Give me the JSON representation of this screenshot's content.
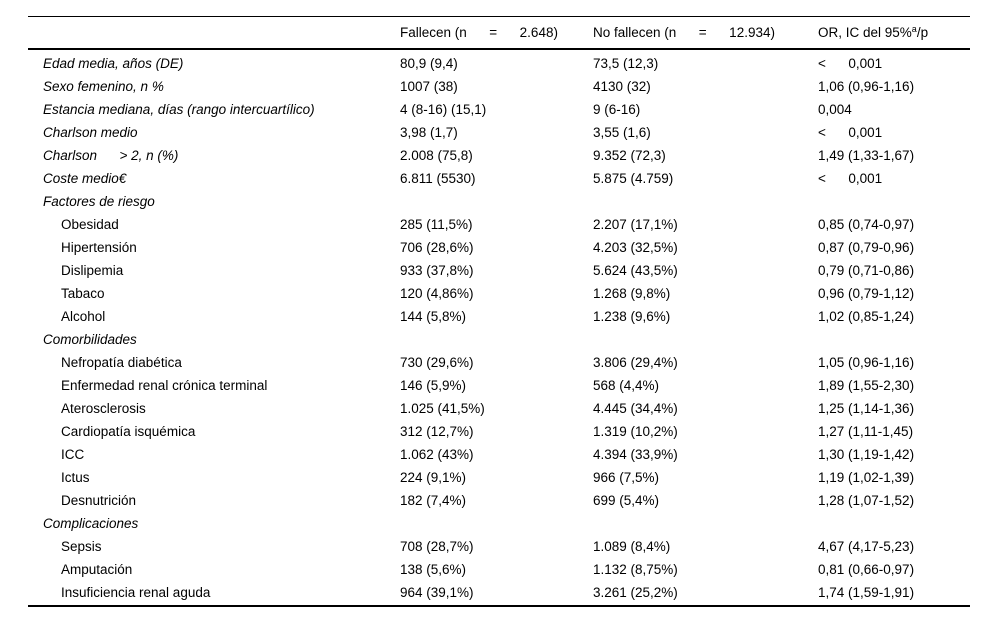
{
  "table": {
    "header": {
      "fallecen": "Fallecen (n      =      2.648)",
      "no_fallecen": "No fallecen (n      =      12.934)",
      "or_col": {
        "base": "OR, IC del 95%",
        "sup": "a",
        "suffix": "/p"
      }
    },
    "rows": [
      {
        "style": "main",
        "label": "Edad media, años (DE)",
        "fallecen": "80,9 (9,4)",
        "no_fallecen": "73,5 (12,3)",
        "or_p": "<      0,001"
      },
      {
        "style": "main",
        "label": "Sexo femenino, n %",
        "fallecen": "1007 (38)",
        "no_fallecen": "4130 (32)",
        "or_p": "1,06 (0,96-1,16)"
      },
      {
        "style": "main",
        "label": "Estancia mediana, días (rango intercuartílico)",
        "fallecen": "4 (8-16) (15,1)",
        "no_fallecen": "9 (6-16)",
        "or_p": "0,004"
      },
      {
        "style": "main",
        "label": "Charlson medio",
        "fallecen": "3,98 (1,7)",
        "no_fallecen": "3,55 (1,6)",
        "or_p": "<      0,001"
      },
      {
        "style": "main",
        "label": "Charlson      > 2, n (%)",
        "fallecen": "2.008 (75,8)",
        "no_fallecen": "9.352 (72,3)",
        "or_p": "1,49 (1,33-1,67)"
      },
      {
        "style": "main",
        "label": "Coste medio€",
        "fallecen": "6.811 (5530)",
        "no_fallecen": "5.875 (4.759)",
        "or_p": "<      0,001"
      },
      {
        "style": "section",
        "label": "Factores de riesgo",
        "fallecen": "",
        "no_fallecen": "",
        "or_p": ""
      },
      {
        "style": "item",
        "label": "Obesidad",
        "fallecen": "285 (11,5%)",
        "no_fallecen": "2.207 (17,1%)",
        "or_p": "0,85 (0,74-0,97)"
      },
      {
        "style": "item",
        "label": "Hipertensión",
        "fallecen": "706 (28,6%)",
        "no_fallecen": "4.203 (32,5%)",
        "or_p": "0,87 (0,79-0,96)"
      },
      {
        "style": "item",
        "label": "Dislipemia",
        "fallecen": "933 (37,8%)",
        "no_fallecen": "5.624 (43,5%)",
        "or_p": "0,79 (0,71-0,86)"
      },
      {
        "style": "item",
        "label": "Tabaco",
        "fallecen": "120 (4,86%)",
        "no_fallecen": "1.268 (9,8%)",
        "or_p": "0,96 (0,79-1,12)"
      },
      {
        "style": "item",
        "label": "Alcohol",
        "fallecen": "144 (5,8%)",
        "no_fallecen": "1.238 (9,6%)",
        "or_p": "1,02 (0,85-1,24)"
      },
      {
        "style": "section",
        "label": "Comorbilidades",
        "fallecen": "",
        "no_fallecen": "",
        "or_p": ""
      },
      {
        "style": "item",
        "label": "Nefropatía diabética",
        "fallecen": "730 (29,6%)",
        "no_fallecen": "3.806 (29,4%)",
        "or_p": "1,05 (0,96-1,16)"
      },
      {
        "style": "item",
        "label": "Enfermedad renal crónica terminal",
        "fallecen": "146 (5,9%)",
        "no_fallecen": "568 (4,4%)",
        "or_p": "1,89 (1,55-2,30)"
      },
      {
        "style": "item",
        "label": "Aterosclerosis",
        "fallecen": "1.025 (41,5%)",
        "no_fallecen": "4.445 (34,4%)",
        "or_p": "1,25 (1,14-1,36)"
      },
      {
        "style": "item",
        "label": "Cardiopatía isquémica",
        "fallecen": "312 (12,7%)",
        "no_fallecen": "1.319 (10,2%)",
        "or_p": "1,27 (1,11-1,45)"
      },
      {
        "style": "item",
        "label": "ICC",
        "fallecen": "1.062 (43%)",
        "no_fallecen": "4.394 (33,9%)",
        "or_p": "1,30 (1,19-1,42)"
      },
      {
        "style": "item",
        "label": "Ictus",
        "fallecen": "224 (9,1%)",
        "no_fallecen": "966 (7,5%)",
        "or_p": "1,19 (1,02-1,39)"
      },
      {
        "style": "item",
        "label": "Desnutrición",
        "fallecen": "182 (7,4%)",
        "no_fallecen": "699 (5,4%)",
        "or_p": "1,28 (1,07-1,52)"
      },
      {
        "style": "section",
        "label": "Complicaciones",
        "fallecen": "",
        "no_fallecen": "",
        "or_p": ""
      },
      {
        "style": "item",
        "label": "Sepsis",
        "fallecen": "708 (28,7%)",
        "no_fallecen": "1.089 (8,4%)",
        "or_p": "4,67 (4,17-5,23)"
      },
      {
        "style": "item",
        "label": "Amputación",
        "fallecen": "138 (5,6%)",
        "no_fallecen": "1.132 (8,75%)",
        "or_p": "0,81 (0,66-0,97)"
      },
      {
        "style": "item",
        "label": "Insuficiencia renal aguda",
        "fallecen": "964 (39,1%)",
        "no_fallecen": "3.261 (25,2%)",
        "or_p": "1,74 (1,59-1,91)"
      }
    ]
  }
}
